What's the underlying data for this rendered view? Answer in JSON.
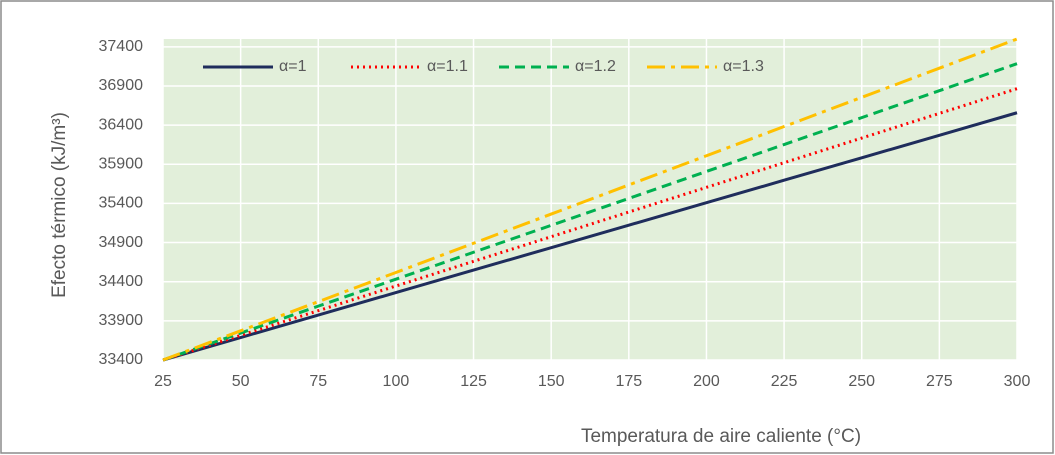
{
  "chart_data": {
    "type": "line",
    "x_label": "Temperatura de aire caliente (°C)",
    "y_label": "Efecto térmico (kJ/m³)",
    "x": [
      25,
      50,
      75,
      100,
      125,
      150,
      175,
      200,
      225,
      250,
      275,
      300
    ],
    "series": [
      {
        "name": "α=1",
        "color": "#1f2d5c",
        "style": "solid",
        "values": [
          33400,
          33687,
          33974,
          34261,
          34548,
          34835,
          35122,
          35409,
          35696,
          35983,
          36270,
          36558
        ]
      },
      {
        "name": "α=1.1",
        "color": "#ff0000",
        "style": "dotted",
        "values": [
          33400,
          33715,
          34030,
          34345,
          34660,
          34975,
          35290,
          35605,
          35920,
          36235,
          36550,
          36865
        ]
      },
      {
        "name": "α=1.2",
        "color": "#00b050",
        "style": "dashed",
        "values": [
          33400,
          33744,
          34088,
          34432,
          34776,
          35120,
          35464,
          35808,
          36152,
          36496,
          36840,
          37185
        ]
      },
      {
        "name": "α=1.3",
        "color": "#ffc000",
        "style": "dashdot",
        "values": [
          33400,
          33773,
          34145,
          34518,
          34891,
          35264,
          35636,
          36009,
          36382,
          36755,
          37127,
          37500
        ]
      }
    ],
    "xlim": [
      25,
      300
    ],
    "xticks": [
      25,
      50,
      75,
      100,
      125,
      150,
      175,
      200,
      225,
      250,
      275,
      300
    ],
    "ylim": [
      33400,
      37500
    ],
    "yticks": [
      33400,
      33900,
      34400,
      34900,
      35400,
      35900,
      36400,
      36900,
      37400
    ],
    "grid": true,
    "legend": "top-left",
    "plot_background": "#e2efda"
  }
}
